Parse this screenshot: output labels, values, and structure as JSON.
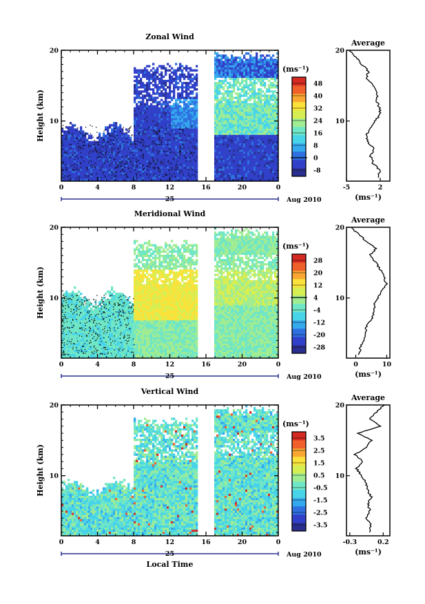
{
  "colors": {
    "axis": "#000000",
    "jet": [
      "#2a2f8f",
      "#3040c8",
      "#2f70e0",
      "#35a9ee",
      "#48d4e8",
      "#6fe6c6",
      "#a0ec92",
      "#d6ee52",
      "#fbe23a",
      "#f9a732",
      "#f0602a",
      "#d42a22"
    ],
    "missing": "#ffffff"
  },
  "figure": {
    "xlabel": "Local Time",
    "date_label": "Aug 2010",
    "day_marker": "25",
    "units": "(ms⁻¹)",
    "profile_title": "Average",
    "ylabel": "Height (km)",
    "xticks": [
      "0",
      "4",
      "8",
      "12",
      "16",
      "20",
      "0"
    ]
  },
  "chart_data": [
    {
      "type": "heatmap",
      "title": "Zonal Wind",
      "ylabel": "Height (km)",
      "xlabel": "",
      "xlim": [
        0,
        24
      ],
      "ylim": [
        1.5,
        20
      ],
      "yticks": [
        "10",
        "20"
      ],
      "xticks": [
        "0",
        "4",
        "8",
        "12",
        "16",
        "20",
        "0"
      ],
      "colorbar": {
        "units": "(ms⁻¹)",
        "ticks": [
          "48",
          "40",
          "32",
          "24",
          "16",
          "8",
          "0",
          "-8"
        ],
        "min": -12,
        "max": 52
      },
      "data_gap_hours": [
        15.1,
        16.9
      ],
      "profile": {
        "title": "Average",
        "xlabel": "(ms⁻¹)",
        "xticks": [
          "-5",
          "2"
        ],
        "xlim": [
          -5,
          4
        ],
        "heights": [
          2,
          3,
          4,
          5,
          6,
          7,
          8,
          9,
          10,
          11,
          12,
          13,
          14,
          15,
          16,
          17,
          18,
          19,
          20
        ],
        "values": [
          1.5,
          2.0,
          0.5,
          0.0,
          0.8,
          -0.5,
          -1.0,
          0.0,
          1.0,
          2.0,
          1.8,
          1.2,
          1.4,
          0.6,
          -1.0,
          -0.4,
          -1.8,
          -3.0,
          -4.5
        ]
      }
    },
    {
      "type": "heatmap",
      "title": "Meridional Wind",
      "ylabel": "Height (km)",
      "xlabel": "",
      "xlim": [
        0,
        24
      ],
      "ylim": [
        1.5,
        20
      ],
      "yticks": [
        "10",
        "20"
      ],
      "xticks": [
        "0",
        "4",
        "8",
        "12",
        "16",
        "20",
        "0"
      ],
      "colorbar": {
        "units": "(ms⁻¹)",
        "ticks": [
          "28",
          "20",
          "12",
          "4",
          "-4",
          "-12",
          "-20",
          "-28"
        ],
        "min": -32,
        "max": 32
      },
      "data_gap_hours": [
        15.1,
        16.9
      ],
      "profile": {
        "title": "Average",
        "xlabel": "(ms⁻¹)",
        "xticks": [
          "0",
          "10"
        ],
        "xlim": [
          -3,
          11
        ],
        "heights": [
          2,
          3,
          4,
          5,
          6,
          7,
          8,
          9,
          10,
          11,
          12,
          13,
          14,
          15,
          16,
          17,
          18,
          19,
          20
        ],
        "values": [
          1.0,
          1.5,
          2.5,
          3.0,
          3.5,
          5.0,
          6.0,
          6.0,
          7.0,
          8.5,
          10.0,
          9.0,
          8.0,
          6.5,
          4.5,
          6.5,
          3.5,
          1.0,
          -1.5
        ]
      }
    },
    {
      "type": "heatmap",
      "title": "Vertical Wind",
      "ylabel": "Height (km)",
      "xlabel": "Local Time",
      "xlim": [
        0,
        24
      ],
      "ylim": [
        1.5,
        20
      ],
      "yticks": [
        "10",
        "20"
      ],
      "xticks": [
        "0",
        "4",
        "8",
        "12",
        "16",
        "20",
        "0"
      ],
      "colorbar": {
        "units": "(ms⁻¹)",
        "ticks": [
          "3.5",
          "2.5",
          "1.5",
          "0.5",
          "-0.5",
          "-1.5",
          "-2.5",
          "-3.5"
        ],
        "min": -4,
        "max": 4
      },
      "data_gap_hours": [
        15.1,
        16.9
      ],
      "profile": {
        "title": "Average",
        "xlabel": "(ms⁻¹)",
        "xticks": [
          "-0.3",
          "0.2"
        ],
        "xlim": [
          -0.35,
          0.3
        ],
        "heights": [
          2,
          3,
          4,
          5,
          6,
          7,
          8,
          9,
          10,
          11,
          12,
          13,
          14,
          15,
          16,
          17,
          18,
          19,
          20
        ],
        "values": [
          0.0,
          0.02,
          -0.05,
          0.0,
          -0.03,
          0.02,
          -0.04,
          -0.05,
          -0.12,
          -0.2,
          -0.1,
          -0.22,
          -0.05,
          0.02,
          -0.18,
          0.15,
          0.0,
          0.1,
          0.22
        ]
      }
    }
  ]
}
